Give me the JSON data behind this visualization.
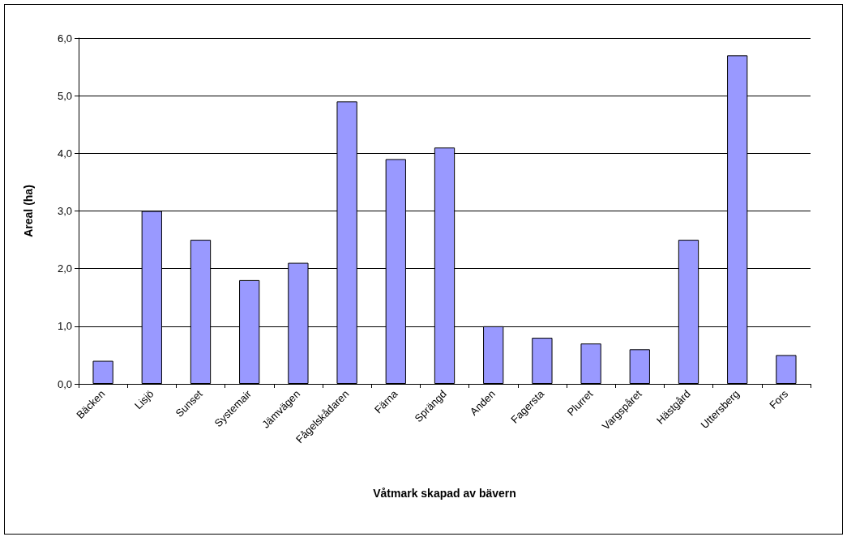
{
  "chart_data": {
    "type": "bar",
    "xlabel": "Våtmark skapad av bävern",
    "ylabel": "Areal (ha)",
    "categories": [
      "Bäcken",
      "Lisjö",
      "Sunset",
      "Systemair",
      "Jämvägen",
      "Fågelskådaren",
      "Färna",
      "Sprängd",
      "Anden",
      "Fagersta",
      "Plurret",
      "Vargspåret",
      "Hästgård",
      "Uttersberg",
      "Fors"
    ],
    "values": [
      0.4,
      3.0,
      2.5,
      1.8,
      2.1,
      4.9,
      3.9,
      4.1,
      1.0,
      0.8,
      0.7,
      0.6,
      2.5,
      5.7,
      0.5
    ],
    "color": "#9999ff",
    "ylim": [
      0,
      6
    ],
    "yticks": [
      {
        "value": 0,
        "label": "0,0"
      },
      {
        "value": 1,
        "label": "1,0"
      },
      {
        "value": 2,
        "label": "2,0"
      },
      {
        "value": 3,
        "label": "3,0"
      },
      {
        "value": 4,
        "label": "4,0"
      },
      {
        "value": 5,
        "label": "5,0"
      },
      {
        "value": 6,
        "label": "6,0"
      }
    ],
    "grid": "y"
  }
}
